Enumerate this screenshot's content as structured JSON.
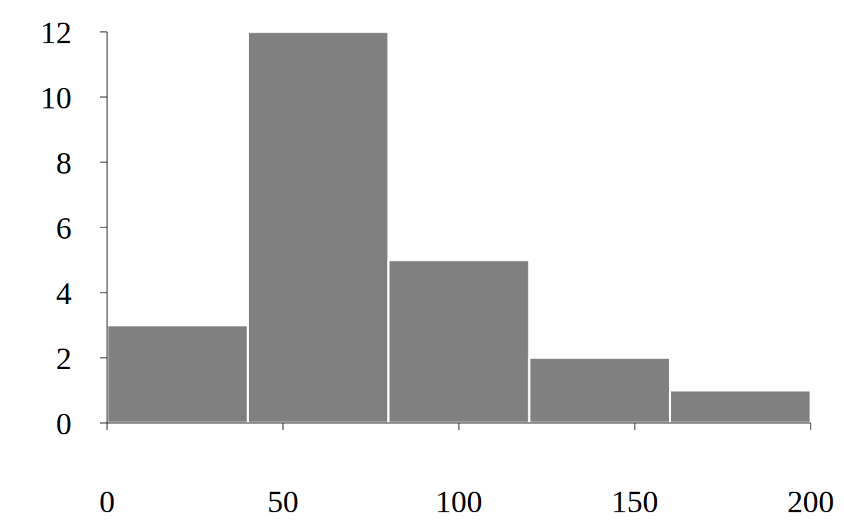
{
  "chart_data": {
    "type": "histogram",
    "bins": [
      0,
      40,
      80,
      120,
      160,
      200
    ],
    "counts": [
      3,
      12,
      5,
      2,
      1
    ],
    "color": "#808080",
    "xlim": [
      0,
      200
    ],
    "ylim": [
      0,
      12
    ],
    "xticks": [
      0,
      50,
      100,
      150,
      200
    ],
    "yticks": [
      0,
      2,
      4,
      6,
      8,
      10,
      12
    ],
    "grid": false
  }
}
